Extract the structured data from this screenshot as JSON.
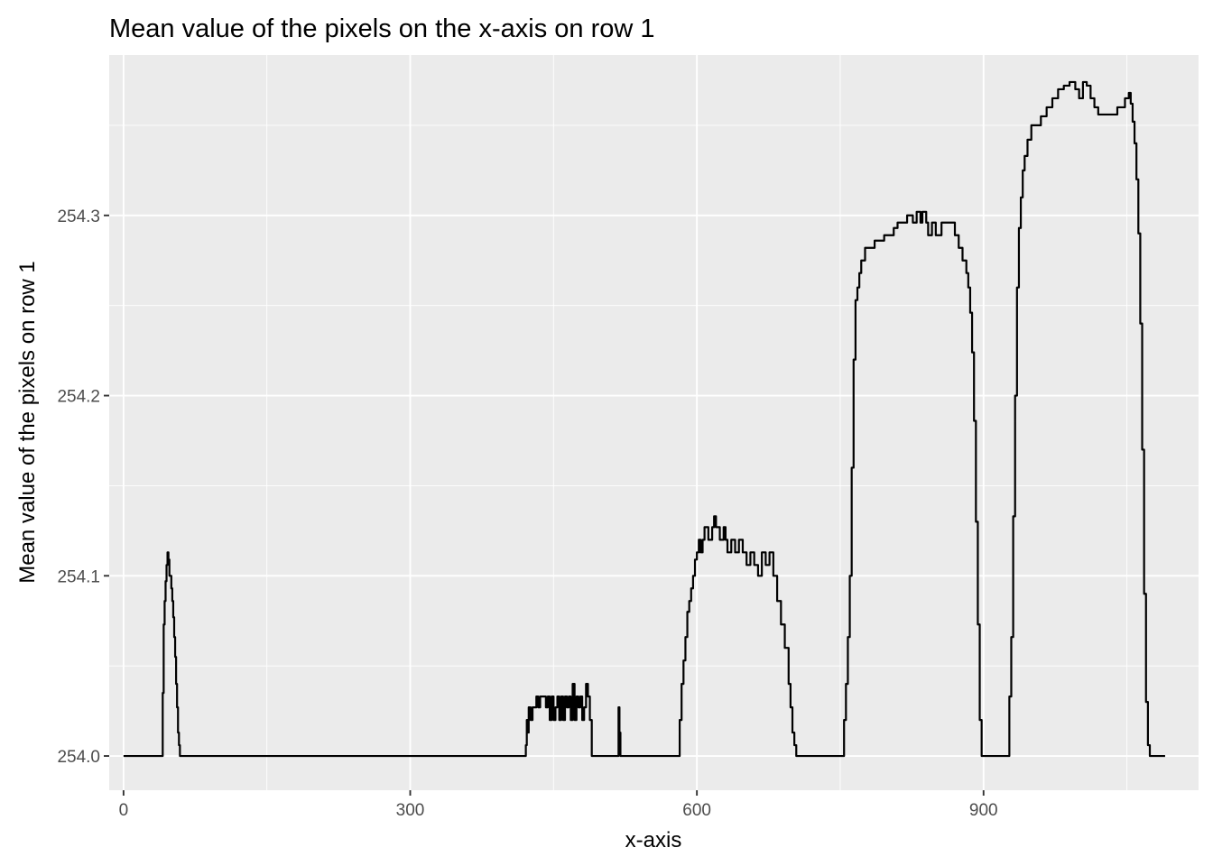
{
  "chart_data": {
    "type": "line",
    "title": "Mean value of the pixels on the x-axis on row 1",
    "xlabel": "x-axis",
    "ylabel": "Mean value of the pixels on row 1",
    "xlim": [
      -15,
      1125
    ],
    "ylim": [
      253.981,
      254.389
    ],
    "x_ticks": [
      0,
      300,
      600,
      900
    ],
    "x_tick_labels": [
      "0",
      "300",
      "600",
      "900"
    ],
    "y_ticks": [
      254.0,
      254.1,
      254.2,
      254.3
    ],
    "y_tick_labels": [
      "254.0",
      "254.1",
      "254.2",
      "254.3"
    ],
    "x_minor": [
      150,
      450,
      750,
      1050
    ],
    "y_minor": [
      254.05,
      254.15,
      254.25,
      254.35
    ],
    "grid": true,
    "legend": "none",
    "colors": {
      "panel": "#EBEBEB",
      "grid": "#FFFFFF",
      "line": "#000000"
    },
    "series": [
      {
        "x": [
          0,
          40,
          41,
          42,
          43,
          44,
          45,
          46,
          47,
          48,
          49,
          50,
          51,
          52,
          53,
          54,
          55,
          56,
          57,
          58,
          59,
          60,
          61,
          62,
          63,
          64,
          65,
          66,
          67,
          68,
          69,
          420,
          421,
          422,
          423,
          424,
          425,
          426,
          428,
          430,
          432,
          434,
          436,
          438,
          440,
          442,
          444,
          446,
          448,
          450,
          452,
          454,
          456,
          458,
          460,
          462,
          464,
          466,
          468,
          470,
          472,
          474,
          476,
          478,
          480,
          482,
          484,
          486,
          488,
          490,
          492,
          494,
          515,
          517,
          518,
          519,
          520,
          521,
          580,
          582,
          584,
          586,
          588,
          590,
          592,
          594,
          596,
          598,
          600,
          602,
          604,
          606,
          608,
          612,
          616,
          618,
          620,
          624,
          628,
          630,
          632,
          636,
          640,
          644,
          648,
          652,
          656,
          660,
          664,
          668,
          672,
          676,
          680,
          684,
          688,
          692,
          696,
          698,
          700,
          702,
          704,
          706,
          708,
          710,
          752,
          754,
          756,
          758,
          760,
          762,
          764,
          766,
          768,
          770,
          772,
          776,
          780,
          786,
          790,
          796,
          800,
          806,
          810,
          816,
          820,
          826,
          830,
          834,
          836,
          840,
          842,
          846,
          850,
          856,
          860,
          866,
          870,
          874,
          878,
          882,
          884,
          886,
          888,
          890,
          892,
          894,
          896,
          898,
          900,
          902,
          925,
          927,
          929,
          931,
          933,
          935,
          937,
          939,
          941,
          943,
          946,
          950,
          955,
          960,
          966,
          972,
          978,
          984,
          990,
          996,
          1000,
          1004,
          1008,
          1012,
          1016,
          1020,
          1024,
          1028,
          1032,
          1036,
          1040,
          1044,
          1048,
          1052,
          1054,
          1056,
          1058,
          1060,
          1062,
          1064,
          1066,
          1068,
          1070,
          1072,
          1074,
          1076,
          1078,
          1080,
          1082,
          1084,
          1086,
          1088,
          1090
        ],
        "y": [
          254.0,
          254.0,
          254.035,
          254.073,
          254.086,
          254.097,
          254.106,
          254.113,
          254.109,
          254.1,
          254.1,
          254.093,
          254.086,
          254.077,
          254.066,
          254.055,
          254.04,
          254.027,
          254.013,
          254.006,
          254.0,
          254.0,
          254.0,
          254.0,
          254.0,
          254.0,
          254.0,
          254.0,
          254.0,
          254.0,
          254.0,
          254.0,
          254.006,
          254.02,
          254.013,
          254.027,
          254.027,
          254.02,
          254.027,
          254.027,
          254.033,
          254.027,
          254.033,
          254.033,
          254.033,
          254.027,
          254.033,
          254.02,
          254.033,
          254.02,
          254.027,
          254.033,
          254.02,
          254.033,
          254.02,
          254.033,
          254.027,
          254.033,
          254.02,
          254.04,
          254.02,
          254.033,
          254.027,
          254.033,
          254.02,
          254.027,
          254.04,
          254.033,
          254.02,
          254.0,
          254.0,
          254.0,
          254.0,
          254.0,
          254.027,
          254.013,
          254.0,
          254.0,
          254.0,
          254.02,
          254.04,
          254.053,
          254.066,
          254.08,
          254.086,
          254.093,
          254.1,
          254.109,
          254.113,
          254.12,
          254.113,
          254.12,
          254.127,
          254.12,
          254.127,
          254.133,
          254.127,
          254.12,
          254.127,
          254.12,
          254.113,
          254.12,
          254.113,
          254.12,
          254.113,
          254.106,
          254.113,
          254.106,
          254.1,
          254.113,
          254.106,
          254.113,
          254.1,
          254.086,
          254.073,
          254.06,
          254.04,
          254.027,
          254.013,
          254.006,
          254.0,
          254.0,
          254.0,
          254.0,
          254.0,
          254.02,
          254.04,
          254.066,
          254.1,
          254.16,
          254.22,
          254.253,
          254.26,
          254.268,
          254.275,
          254.282,
          254.282,
          254.286,
          254.286,
          254.289,
          254.289,
          254.293,
          254.296,
          254.296,
          254.3,
          254.296,
          254.302,
          254.296,
          254.302,
          254.296,
          254.289,
          254.296,
          254.289,
          254.296,
          254.296,
          254.296,
          254.289,
          254.282,
          254.275,
          254.268,
          254.26,
          254.246,
          254.224,
          254.186,
          254.13,
          254.073,
          254.02,
          254.0,
          254.0,
          254.0,
          254.0,
          254.033,
          254.066,
          254.133,
          254.2,
          254.26,
          254.293,
          254.31,
          254.325,
          254.333,
          254.342,
          254.35,
          254.35,
          254.355,
          254.36,
          254.365,
          254.37,
          254.372,
          254.374,
          254.37,
          254.365,
          254.374,
          254.372,
          254.365,
          254.36,
          254.356,
          254.356,
          254.356,
          254.356,
          254.356,
          254.36,
          254.36,
          254.365,
          254.368,
          254.362,
          254.352,
          254.34,
          254.32,
          254.29,
          254.24,
          254.17,
          254.09,
          254.03,
          254.006,
          254.0,
          254.0,
          254.0,
          254.0,
          254.0,
          254.0,
          254.0,
          254.0,
          254.0
        ]
      }
    ]
  }
}
